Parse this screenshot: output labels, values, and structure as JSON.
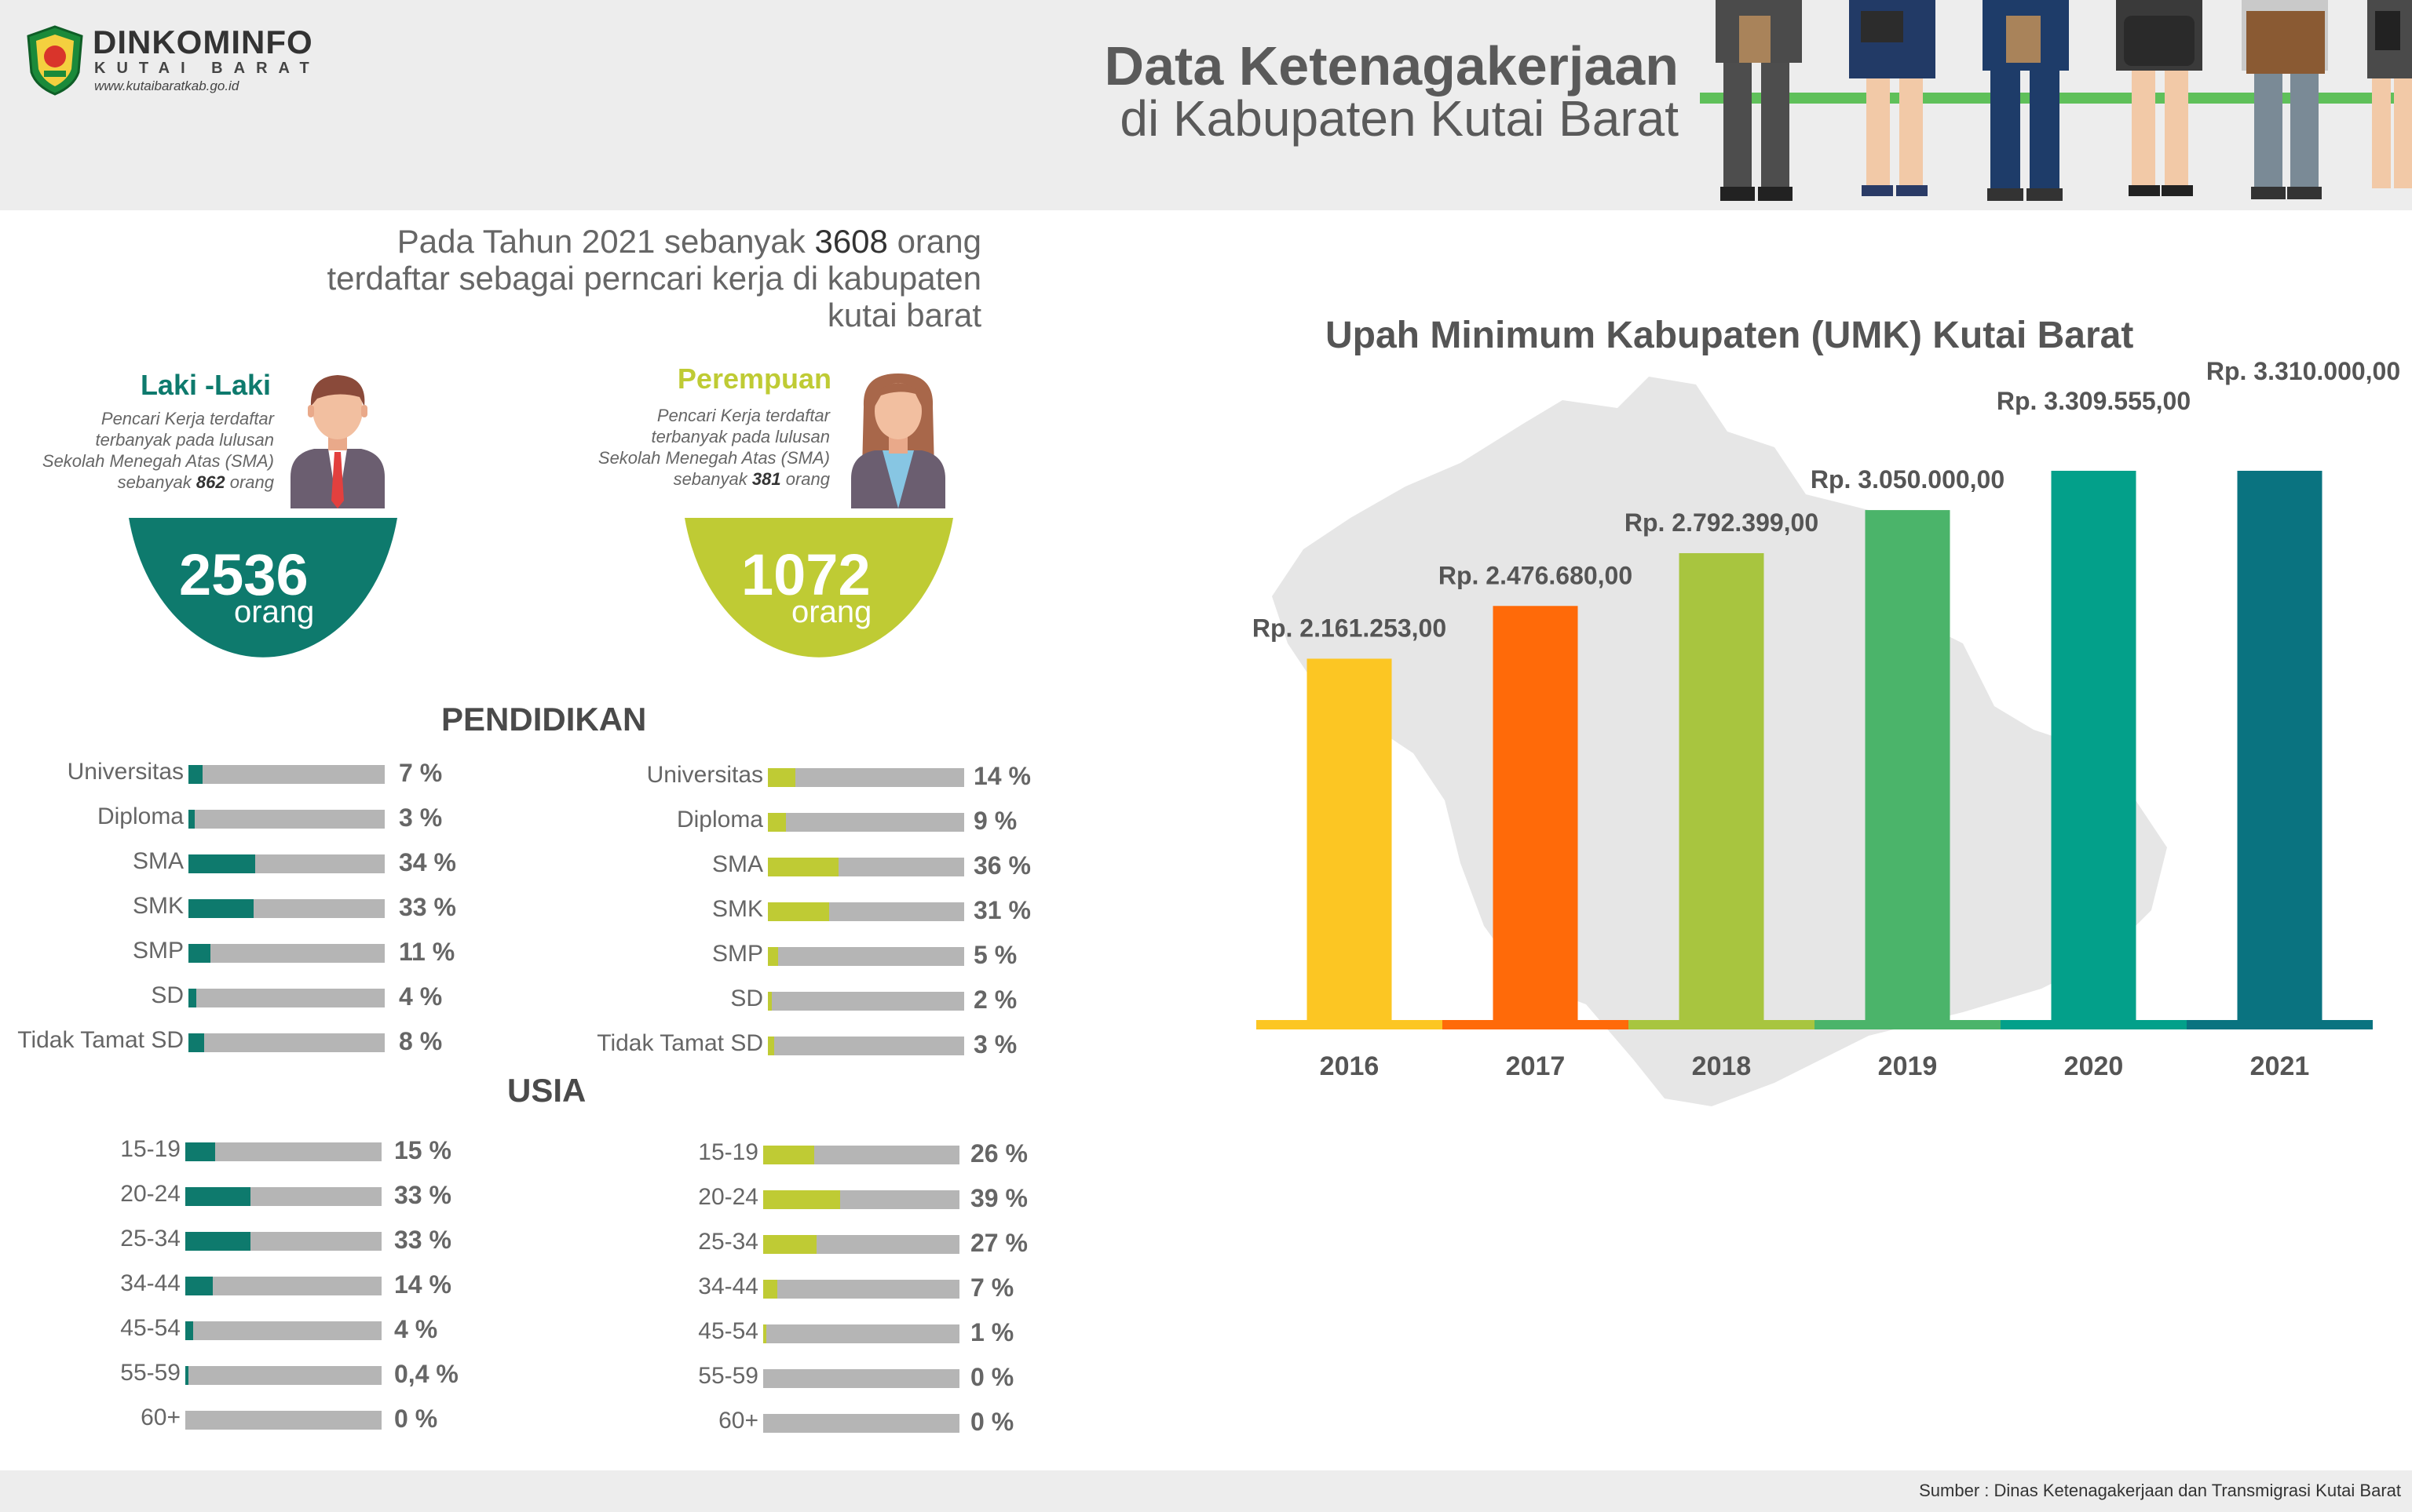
{
  "header": {
    "logo_name": "DINKOMINFO",
    "logo_sub": "KUTAI BARAT",
    "logo_url": "www.kutaibaratkab.go.id",
    "title_line1": "Data Ketenagakerjaan",
    "title_line2": "di Kabupaten Kutai Barat"
  },
  "summary": {
    "prefix": "Pada Tahun 2021 sebanyak",
    "number": "3608",
    "suffix": "orang terdaftar sebagai perncari kerja di kabupaten kutai barat"
  },
  "male": {
    "title": "Laki -Laki",
    "desc_1": "Pencari Kerja terdaftar",
    "desc_2": "terbanyak pada lulusan",
    "desc_3": "Sekolah Menegah Atas (SMA)",
    "desc_4_prefix": "sebanyak",
    "desc_4_num": "862",
    "desc_4_suffix": "orang",
    "count": "2536",
    "unit": "orang",
    "color": "#0e7a6d"
  },
  "female": {
    "title": "Perempuan",
    "desc_1": "Pencari Kerja terdaftar",
    "desc_2": "terbanyak pada lulusan",
    "desc_3": "Sekolah Menegah Atas (SMA)",
    "desc_4_prefix": "sebanyak",
    "desc_4_num": "381",
    "desc_4_suffix": "orang",
    "count": "1072",
    "unit": "orang",
    "color": "#bfcb34"
  },
  "sections": {
    "education": "PENDIDIKAN",
    "age": "USIA"
  },
  "education_male": [
    {
      "label": "Universitas",
      "value": 7,
      "text": "7 %"
    },
    {
      "label": "Diploma",
      "value": 3,
      "text": "3 %"
    },
    {
      "label": "SMA",
      "value": 34,
      "text": "34 %"
    },
    {
      "label": "SMK",
      "value": 33,
      "text": "33 %"
    },
    {
      "label": "SMP",
      "value": 11,
      "text": "11 %"
    },
    {
      "label": "SD",
      "value": 4,
      "text": "4 %"
    },
    {
      "label": "Tidak Tamat SD",
      "value": 8,
      "text": "8 %"
    }
  ],
  "education_female": [
    {
      "label": "Universitas",
      "value": 14,
      "text": "14 %"
    },
    {
      "label": "Diploma",
      "value": 9,
      "text": "9 %"
    },
    {
      "label": "SMA",
      "value": 36,
      "text": "36 %"
    },
    {
      "label": "SMK",
      "value": 31,
      "text": "31 %"
    },
    {
      "label": "SMP",
      "value": 5,
      "text": "5 %"
    },
    {
      "label": "SD",
      "value": 2,
      "text": "2 %"
    },
    {
      "label": "Tidak Tamat SD",
      "value": 3,
      "text": "3 %"
    }
  ],
  "age_male": [
    {
      "label": "15-19",
      "value": 15,
      "text": "15 %"
    },
    {
      "label": "20-24",
      "value": 33,
      "text": "33 %"
    },
    {
      "label": "25-34",
      "value": 33,
      "text": "33 %"
    },
    {
      "label": "34-44",
      "value": 14,
      "text": "14 %"
    },
    {
      "label": "45-54",
      "value": 4,
      "text": "4 %"
    },
    {
      "label": "55-59",
      "value": 0.4,
      "text": "0,4 %"
    },
    {
      "label": "60+",
      "value": 0,
      "text": "0 %"
    }
  ],
  "age_female": [
    {
      "label": "15-19",
      "value": 26,
      "text": "26 %"
    },
    {
      "label": "20-24",
      "value": 39,
      "text": "39 %"
    },
    {
      "label": "25-34",
      "value": 27,
      "text": "27 %"
    },
    {
      "label": "34-44",
      "value": 7,
      "text": "7 %"
    },
    {
      "label": "45-54",
      "value": 1,
      "text": "1 %"
    },
    {
      "label": "55-59",
      "value": 0,
      "text": "0 %"
    },
    {
      "label": "60+",
      "value": 0,
      "text": "0 %"
    }
  ],
  "chart_data": {
    "type": "bar",
    "title": "Upah Minimum Kabupaten (UMK) Kutai Barat",
    "categories": [
      "2016",
      "2017",
      "2018",
      "2019",
      "2020",
      "2021"
    ],
    "values": [
      2161253,
      2476680,
      2792399,
      3050000,
      3309555,
      3310000
    ],
    "data_labels": [
      "Rp. 2.161.253,00",
      "Rp. 2.476.680,00",
      "Rp. 2.792.399,00",
      "Rp. 3.050.000,00",
      "Rp. 3.309.555,00",
      "Rp. 3.310.000,00"
    ],
    "colors": [
      "#fcc623",
      "#ff6a09",
      "#a8c53f",
      "#4bb46a",
      "#03a08a",
      "#0a7380"
    ],
    "xlabel": "",
    "ylabel": "",
    "grid": false
  },
  "footer": {
    "source": "Sumber : Dinas Ketenagakerjaan dan Transmigrasi Kutai Barat"
  }
}
